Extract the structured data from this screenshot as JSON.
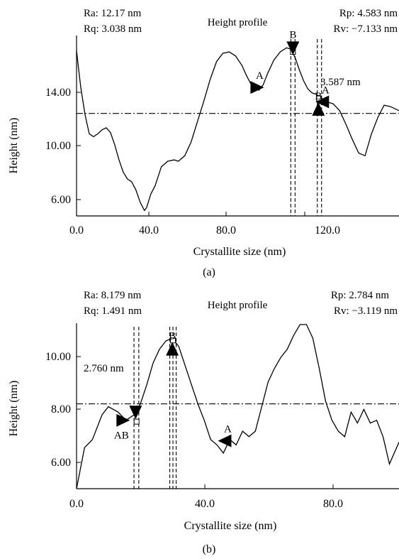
{
  "chart_data": [
    {
      "type": "line",
      "panel_label": "(a)",
      "title": "Height profile",
      "xlabel": "Crystallite size  (nm)",
      "ylabel": "Height (nm)",
      "xlim": [
        0,
        152
      ],
      "ylim": [
        4.6,
        17.8
      ],
      "xticks": [
        0,
        40,
        80,
        120
      ],
      "xtick_labels": [
        "0.0",
        "40.0",
        "80.0",
        "120.0"
      ],
      "yticks": [
        6,
        10,
        14
      ],
      "ytick_labels": [
        "6.00",
        "10.00",
        "14.00"
      ],
      "grid": false,
      "stats": {
        "ra": "Ra: 12.17 nm",
        "rq": "Rq: 3.038 nm",
        "rp": "Rp: 4.583 nm",
        "rv": "Rv: −7.133 nm"
      },
      "mean_line_y": 12.1,
      "series": [
        {
          "x": [
            0,
            1,
            2,
            4,
            6,
            8,
            10,
            12,
            14,
            16,
            18,
            20,
            22,
            24,
            26,
            28,
            30,
            32,
            33,
            35,
            37,
            40,
            43,
            46,
            48,
            51,
            54,
            57,
            60,
            63,
            66,
            69,
            72,
            75,
            78,
            80,
            82,
            84,
            86,
            88,
            90,
            93,
            96,
            99,
            101,
            103,
            105,
            107,
            109,
            111,
            113,
            115,
            117,
            119,
            121,
            124,
            127,
            130,
            133,
            136,
            139,
            142,
            145,
            148,
            152
          ],
          "y": [
            16.7,
            15.3,
            14.0,
            12.0,
            10.6,
            10.4,
            10.6,
            10.9,
            11.05,
            10.7,
            9.8,
            8.7,
            7.8,
            7.3,
            7.1,
            6.5,
            5.6,
            5.0,
            5.2,
            6.2,
            6.8,
            8.2,
            8.6,
            8.7,
            8.6,
            9.0,
            10.0,
            11.5,
            13.0,
            14.6,
            15.9,
            16.5,
            16.6,
            16.3,
            15.6,
            14.9,
            14.3,
            13.9,
            13.8,
            14.2,
            15.0,
            16.0,
            16.6,
            16.9,
            16.8,
            16.2,
            15.3,
            14.5,
            13.9,
            13.6,
            13.5,
            13.3,
            13.0,
            12.9,
            12.8,
            12.3,
            11.3,
            10.2,
            9.2,
            9.0,
            10.6,
            11.8,
            12.7,
            12.6,
            12.3
          ]
        }
      ],
      "cursors": [
        {
          "label": "A",
          "x": 85,
          "y": 14.0,
          "pointer": "right"
        },
        {
          "label": "B",
          "x": 102,
          "y": 16.9,
          "pointer": "down"
        },
        {
          "label": "A",
          "x": 116,
          "y": 12.95,
          "pointer": "left"
        },
        {
          "label": "B",
          "x": 114,
          "y": 12.4,
          "pointer": "up"
        }
      ],
      "cursor_lines_x": [
        101,
        103,
        113.5,
        115.5
      ],
      "markers": [
        {
          "x": 102,
          "y": 16.6
        },
        {
          "x": 114.3,
          "y": 13.2
        }
      ],
      "annotation": "3.587 nm"
    },
    {
      "type": "line",
      "panel_label": "(b)",
      "title": "Height profile",
      "xlabel": "Crystallite size  (nm)",
      "ylabel": "Height (nm)",
      "xlim": [
        0,
        101
      ],
      "ylim": [
        5.0,
        11.05
      ],
      "xticks": [
        0,
        40,
        80
      ],
      "xtick_labels": [
        "0.0",
        "40.0",
        "80.0"
      ],
      "yticks": [
        6,
        8,
        10
      ],
      "ytick_labels": [
        "6.00",
        "8.00",
        "10.00"
      ],
      "grid": false,
      "stats": {
        "ra": "Ra: 8.179 nm",
        "rq": "Rq: 1.491 nm",
        "rp": "Rp: 2.784 nm",
        "rv": "Rv: −3.119 nm"
      },
      "mean_line_y": 8.1,
      "series": [
        {
          "x": [
            0,
            2.5,
            5,
            8,
            10,
            13,
            15.5,
            18,
            20,
            22,
            24,
            26,
            28,
            30,
            32,
            34,
            36,
            38,
            40,
            42,
            44,
            46,
            48,
            50,
            52,
            54,
            56,
            58,
            60,
            62,
            64,
            66,
            68,
            70,
            72,
            74,
            76,
            78,
            80,
            82,
            84,
            86,
            88,
            90,
            92,
            94,
            96,
            98,
            101
          ],
          "y": [
            5.0,
            6.5,
            6.8,
            7.7,
            8.0,
            7.8,
            7.5,
            7.7,
            8.1,
            8.8,
            9.6,
            10.1,
            10.4,
            10.5,
            10.2,
            9.5,
            8.8,
            8.1,
            7.5,
            6.8,
            6.6,
            6.3,
            6.8,
            6.6,
            7.1,
            6.9,
            7.1,
            8.0,
            8.9,
            9.4,
            9.8,
            10.1,
            10.6,
            11.0,
            11.0,
            10.5,
            9.4,
            8.2,
            7.5,
            7.1,
            6.9,
            7.8,
            7.4,
            7.9,
            7.4,
            7.5,
            6.9,
            5.9,
            6.7
          ]
        }
      ],
      "cursors": [
        {
          "label": "AB",
          "x": 14.5,
          "y": 7.5,
          "pointer": "right"
        },
        {
          "label": "",
          "x": 18.5,
          "y": 7.8,
          "pointer": "down"
        },
        {
          "label": "B",
          "x": 30,
          "y": 10.1,
          "pointer": "up"
        },
        {
          "label": "A",
          "x": 46.5,
          "y": 6.75,
          "pointer": "left"
        }
      ],
      "cursor_lines_x": [
        18,
        19.5,
        29.2,
        30.2,
        31.2
      ],
      "markers": [
        {
          "x": 18.8,
          "y": 7.45
        },
        {
          "x": 30.2,
          "y": 10.42
        }
      ],
      "annotation": "2.760 nm"
    }
  ]
}
